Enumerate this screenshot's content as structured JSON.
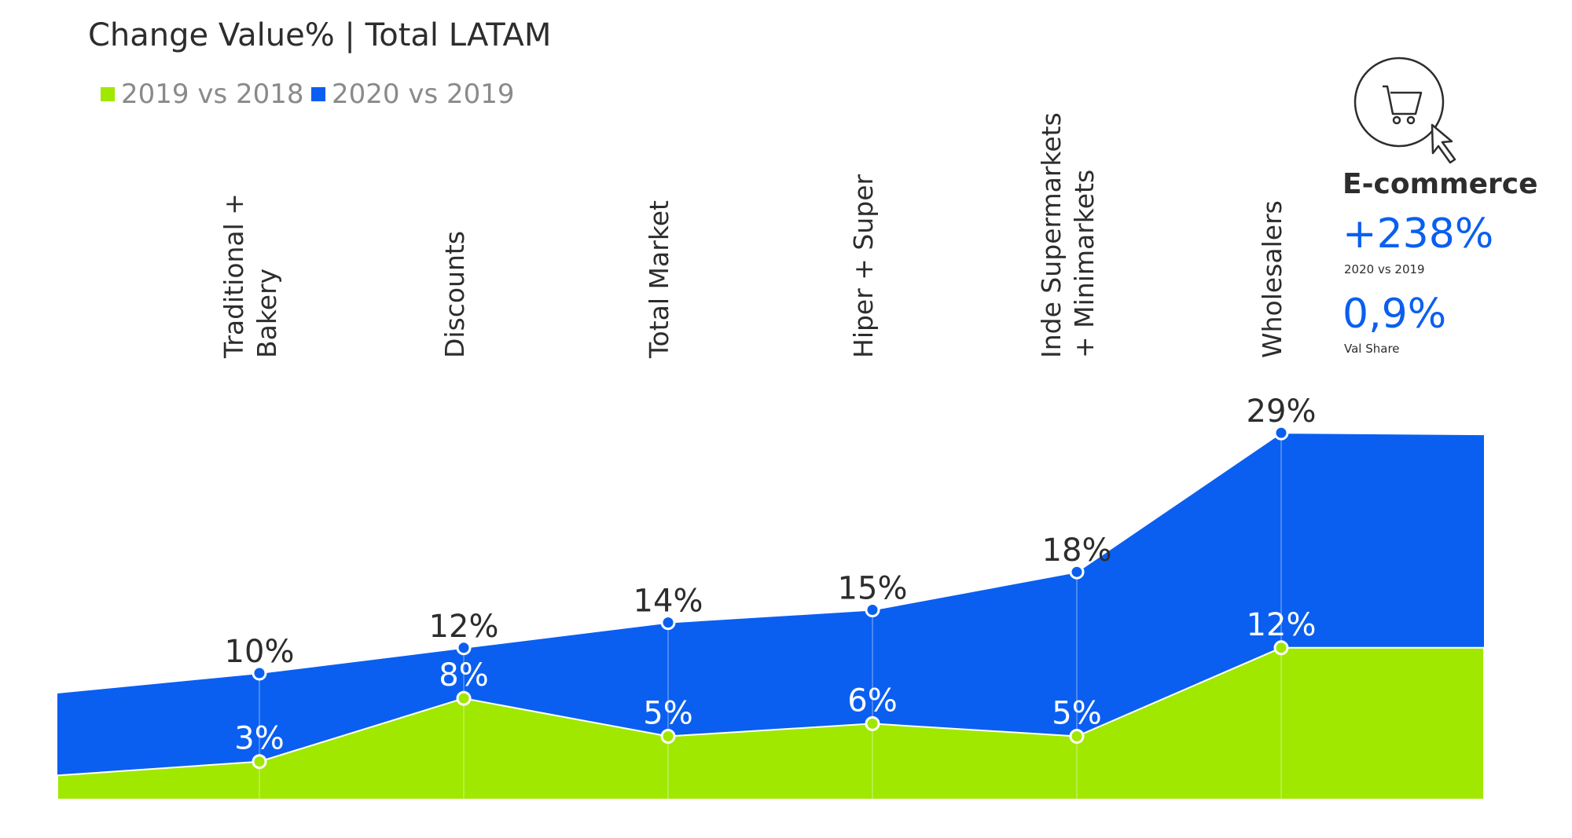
{
  "chart_data": {
    "type": "area",
    "title": "Change Value% | Total LATAM",
    "categories": [
      "Traditional + Bakery",
      "Discounts",
      "Total Market",
      "Hiper + Super",
      "Inde Supermarkets + Minimarkets",
      "Wholesalers"
    ],
    "category_lines": [
      [
        "Traditional +",
        "Bakery"
      ],
      [
        "Discounts"
      ],
      [
        "Total Market"
      ],
      [
        "Hiper + Super"
      ],
      [
        "Inde Supermarkets",
        "+ Minimarkets"
      ],
      [
        "Wholesalers"
      ]
    ],
    "series": [
      {
        "name": "2019 vs 2018",
        "color": "#a0e800",
        "values": [
          3,
          8,
          5,
          6,
          5,
          12
        ],
        "labels": [
          "3%",
          "8%",
          "5%",
          "6%",
          "5%",
          "12%"
        ]
      },
      {
        "name": "2020 vs 2019",
        "color": "#0a5ff0",
        "values": [
          10,
          12,
          14,
          15,
          18,
          29
        ],
        "labels": [
          "10%",
          "12%",
          "14%",
          "15%",
          "18%",
          "29%"
        ]
      }
    ],
    "stacked": false,
    "ylim": [
      0,
      30
    ],
    "xlabel": "",
    "ylabel": "",
    "grid": false,
    "legend_position": "top-left"
  },
  "ecommerce": {
    "icon": "shopping-cart-cursor-icon",
    "title": "E-commerce",
    "growth": "+238%",
    "growth_label": "2020 vs 2019",
    "share": "0,9%",
    "share_label": "Val Share"
  },
  "colors": {
    "green": "#a0e800",
    "blue": "#0a5ff0",
    "text": "#2d2d2d",
    "muted": "#8a8a8a"
  }
}
